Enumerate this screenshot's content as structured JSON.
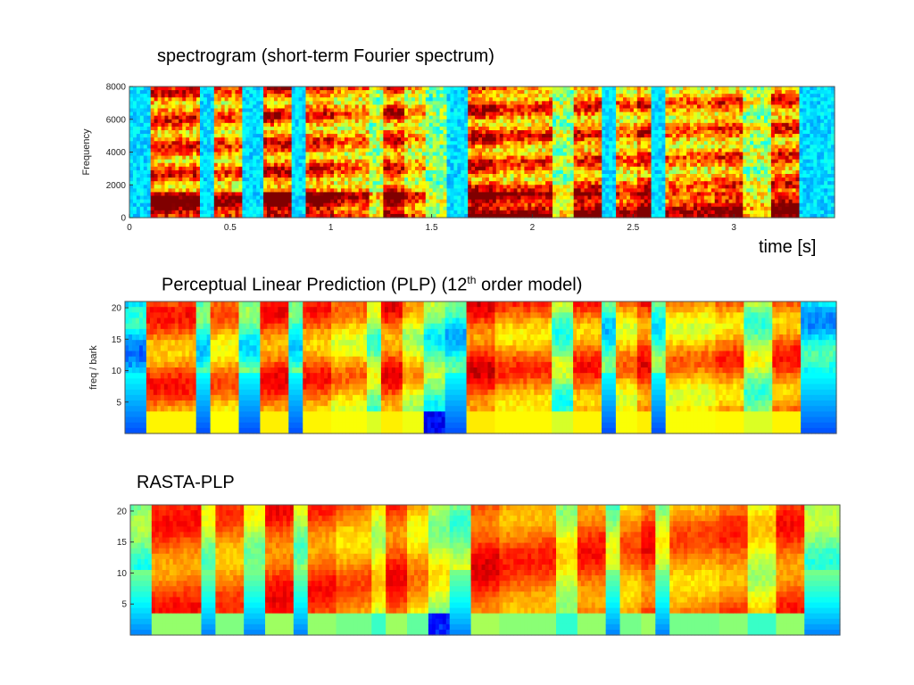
{
  "chart_data": [
    {
      "type": "heatmap",
      "title": "spectrogram (short-term Fourier spectrum)",
      "ylabel": "Frequency",
      "xlabel": "time [s]",
      "xlim": [
        0,
        3.5
      ],
      "ylim": [
        0,
        8000
      ],
      "x_ticks": [
        "0",
        "0.5",
        "1",
        "1.5",
        "2",
        "2.5",
        "3"
      ],
      "y_ticks": [
        "0",
        "2000",
        "4000",
        "6000",
        "8000"
      ],
      "colormap": "jet"
    },
    {
      "type": "heatmap",
      "title": "Perceptual Linear Prediction (PLP) (12",
      "title_superscript": "th",
      "title_suffix": " order model)",
      "ylabel": "freq / bark",
      "xlim": [
        0,
        3.5
      ],
      "ylim": [
        0,
        21
      ],
      "y_ticks": [
        "5",
        "10",
        "15",
        "20"
      ],
      "colormap": "jet"
    },
    {
      "type": "heatmap",
      "title": "RASTA-PLP",
      "xlim": [
        0,
        3.5
      ],
      "ylim": [
        0,
        21
      ],
      "y_ticks": [
        "5",
        "10",
        "15",
        "20"
      ],
      "colormap": "jet"
    }
  ],
  "time_axis_label": "time [s]"
}
